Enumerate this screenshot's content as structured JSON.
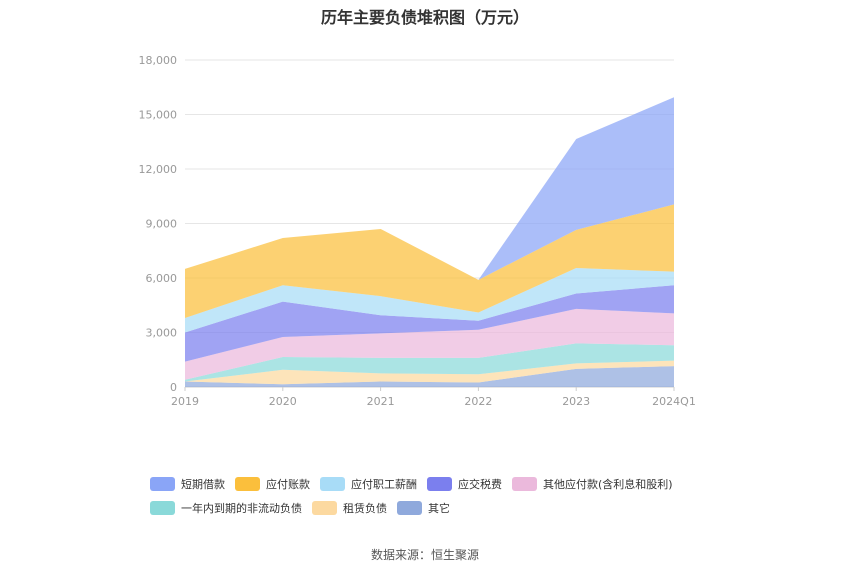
{
  "title": "历年主要负债堆积图（万元）",
  "source": "数据来源：恒生聚源",
  "colors": {
    "grid": "#e6e6e6",
    "axis": "#cccccc"
  },
  "chart_data": {
    "type": "area",
    "stacked": true,
    "categories": [
      "2019",
      "2020",
      "2021",
      "2022",
      "2023",
      "2024Q1"
    ],
    "ylim": [
      0,
      18000
    ],
    "yticks": [
      0,
      3000,
      6000,
      9000,
      12000,
      15000,
      18000
    ],
    "ytick_labels": [
      "0",
      "3,000",
      "6,000",
      "9,000",
      "12,000",
      "15,000",
      "18,000"
    ],
    "grid": true,
    "legend_position": "bottom",
    "series": [
      {
        "name": "其它",
        "color": "#8fa9dc",
        "values": [
          300,
          150,
          300,
          250,
          1000,
          1150
        ]
      },
      {
        "name": "租赁负债",
        "color": "#fcd9a0",
        "values": [
          0,
          800,
          450,
          450,
          300,
          300
        ]
      },
      {
        "name": "一年内到期的非流动负债",
        "color": "#8ad9d9",
        "values": [
          100,
          700,
          850,
          900,
          1100,
          850
        ]
      },
      {
        "name": "其他应付款(含利息和股利)",
        "color": "#ebb9dc",
        "values": [
          1000,
          1100,
          1350,
          1550,
          1900,
          1750
        ]
      },
      {
        "name": "应交税费",
        "color": "#7b7fee",
        "values": [
          1600,
          1950,
          1000,
          500,
          850,
          1550
        ]
      },
      {
        "name": "应付职工薪酬",
        "color": "#a8dcf7",
        "values": [
          800,
          900,
          1050,
          450,
          1400,
          750
        ]
      },
      {
        "name": "应付账款",
        "color": "#fbbf3c",
        "values": [
          2700,
          2600,
          3700,
          1800,
          2100,
          3700
        ]
      },
      {
        "name": "短期借款",
        "color": "#8aa5f7",
        "values": [
          0,
          0,
          0,
          0,
          5000,
          5900
        ]
      }
    ]
  },
  "legend_rows": [
    [
      "短期借款",
      "应付账款",
      "应付职工薪酬",
      "应交税费",
      "其他应付款(含利息和股利)"
    ],
    [
      "一年内到期的非流动负债",
      "租赁负债",
      "其它"
    ]
  ]
}
